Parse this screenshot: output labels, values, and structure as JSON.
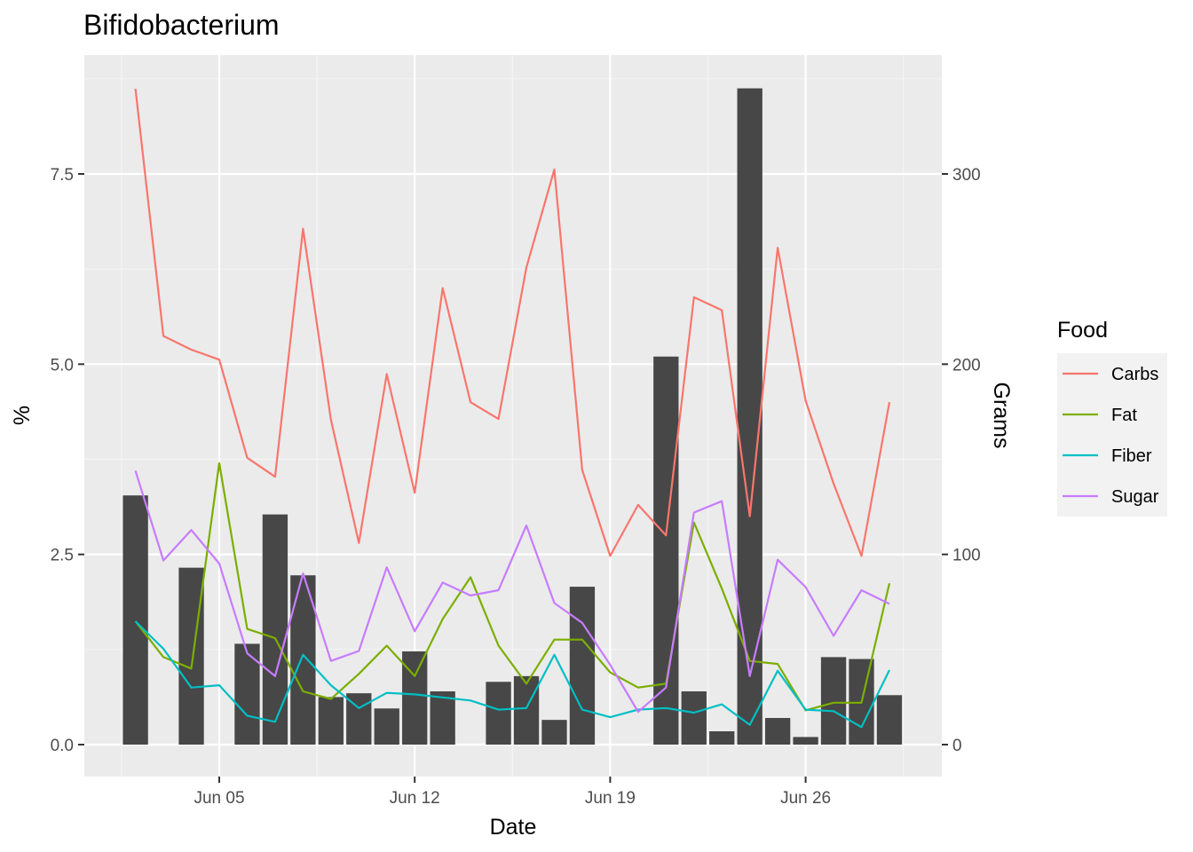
{
  "chart_data": {
    "type": "line",
    "title": "Bifidobacterium",
    "xlabel": "Date",
    "ylabel": "%",
    "y2label": "Grams",
    "x_ticks": [
      "Jun 05",
      "Jun 12",
      "Jun 19",
      "Jun 26"
    ],
    "y_ticks": [
      "0.0",
      "2.5",
      "5.0",
      "7.5"
    ],
    "y2_ticks": [
      "0",
      "100",
      "200",
      "300"
    ],
    "ylim": [
      -0.4,
      9.0
    ],
    "y2_scale_factor": 40,
    "x_start_day": 2,
    "x_end_day": 30,
    "legend": {
      "title": "Food",
      "position": "right"
    },
    "background_color": "#EBEBEB",
    "bar_color": "#474747",
    "bars": {
      "name": "Grams",
      "x": [
        2,
        4,
        6,
        7,
        8,
        9,
        10,
        11,
        12,
        13,
        15,
        16,
        17,
        18,
        21,
        22,
        23,
        24,
        25,
        26,
        27,
        28,
        29
      ],
      "values": [
        131,
        93,
        53,
        121,
        89,
        25,
        27,
        19,
        49,
        28,
        33,
        36,
        13,
        83,
        204,
        28,
        7,
        345,
        14,
        4,
        46,
        45,
        26
      ]
    },
    "x": [
      2,
      3,
      4,
      5,
      6,
      7,
      8,
      9,
      10,
      11,
      12,
      13,
      14,
      15,
      16,
      17,
      18,
      19,
      20,
      21,
      22,
      23,
      24,
      25,
      26,
      27,
      28,
      29
    ],
    "series": [
      {
        "name": "Carbs",
        "color": "#F8766D",
        "values": [
          8.62,
          5.37,
          5.19,
          5.06,
          3.77,
          3.52,
          6.78,
          4.27,
          2.65,
          4.87,
          3.31,
          6.0,
          4.5,
          4.28,
          6.27,
          7.56,
          3.61,
          2.48,
          3.15,
          2.75,
          5.88,
          5.71,
          3.0,
          6.53,
          4.52,
          3.43,
          2.48,
          4.5
        ]
      },
      {
        "name": "Fat",
        "color": "#7CAE00",
        "values": [
          1.62,
          1.15,
          1.0,
          3.7,
          1.52,
          1.4,
          0.7,
          0.6,
          0.93,
          1.3,
          0.9,
          1.65,
          2.2,
          1.3,
          0.8,
          1.38,
          1.38,
          0.95,
          0.75,
          0.8,
          2.92,
          2.05,
          1.1,
          1.06,
          0.45,
          0.55,
          0.55,
          2.12
        ]
      },
      {
        "name": "Fiber",
        "color": "#00BFC4",
        "values": [
          1.62,
          1.26,
          0.75,
          0.78,
          0.38,
          0.3,
          1.18,
          0.78,
          0.48,
          0.68,
          0.66,
          0.62,
          0.58,
          0.46,
          0.48,
          1.18,
          0.46,
          0.36,
          0.46,
          0.48,
          0.42,
          0.53,
          0.26,
          0.97,
          0.46,
          0.44,
          0.23,
          0.98
        ]
      },
      {
        "name": "Sugar",
        "color": "#C77CFF",
        "values": [
          3.6,
          2.42,
          2.82,
          2.38,
          1.2,
          0.9,
          2.25,
          1.1,
          1.23,
          2.33,
          1.49,
          2.13,
          1.96,
          2.03,
          2.88,
          1.86,
          1.6,
          1.05,
          0.43,
          0.75,
          3.05,
          3.2,
          0.9,
          2.43,
          2.07,
          1.43,
          2.03,
          1.85
        ]
      }
    ]
  }
}
